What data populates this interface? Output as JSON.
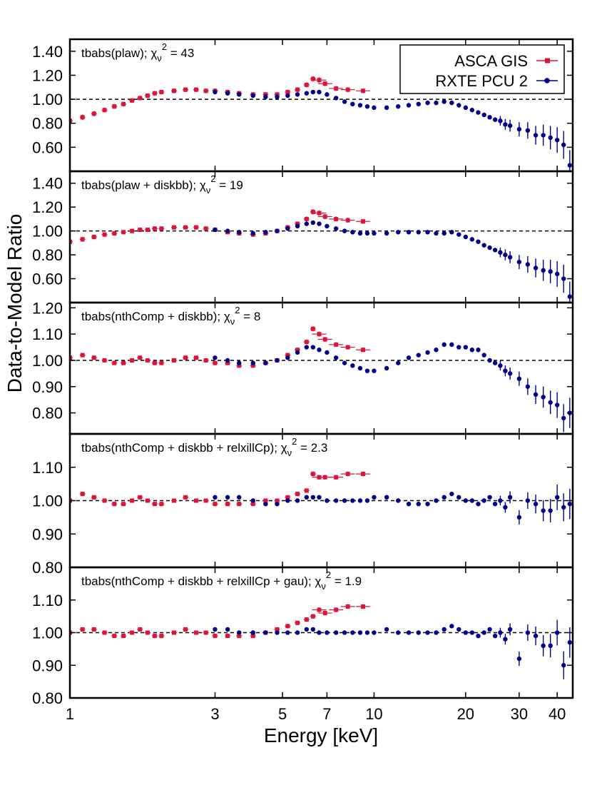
{
  "figure": {
    "xlabel": "Energy [keV]",
    "ylabel": "Data-to-Model Ratio",
    "x_ticks": [
      1,
      3,
      5,
      7,
      10,
      20,
      30,
      40
    ],
    "x_tick_labels": [
      "1",
      "3",
      "5",
      "7",
      "10",
      "20",
      "30",
      "40"
    ],
    "xlim": [
      1,
      45
    ],
    "x_scale": "log",
    "legend": {
      "placement": "top-right of top panel",
      "entries": [
        {
          "label": "ASCA GIS",
          "color": "#dc143c",
          "marker": "square"
        },
        {
          "label": "RXTE PCU 2",
          "color": "#00008b",
          "marker": "circle"
        }
      ]
    },
    "reference_line": 1.0
  },
  "chart_data": [
    {
      "type": "scatter",
      "model_prefix": "tbabs(plaw);",
      "chi_symbol": "χ",
      "chi_sub": "ν",
      "chi_sup": "2",
      "chi_value": "= 43",
      "ylim": [
        0.4,
        1.5
      ],
      "y_ticks": [
        0.6,
        0.8,
        1.0,
        1.2,
        1.4
      ],
      "y_tick_labels": [
        "0.60",
        "0.80",
        "1.00",
        "1.20",
        "1.40"
      ],
      "series": [
        {
          "name": "ASCA GIS",
          "x": [
            1.0,
            1.1,
            1.2,
            1.3,
            1.4,
            1.5,
            1.6,
            1.7,
            1.8,
            1.9,
            2.0,
            2.2,
            2.4,
            2.6,
            2.8,
            3.0,
            3.3,
            3.6,
            4.0,
            4.4,
            4.8,
            5.2,
            5.6,
            6.0,
            6.3,
            6.6,
            6.9,
            7.5,
            8.2,
            9.2
          ],
          "y": [
            0.82,
            0.85,
            0.88,
            0.91,
            0.94,
            0.96,
            0.99,
            1.01,
            1.03,
            1.05,
            1.06,
            1.07,
            1.08,
            1.08,
            1.07,
            1.07,
            1.06,
            1.05,
            1.04,
            1.04,
            1.04,
            1.06,
            1.08,
            1.12,
            1.17,
            1.16,
            1.13,
            1.09,
            1.08,
            1.07
          ]
        },
        {
          "name": "RXTE PCU 2",
          "x": [
            3.0,
            3.3,
            3.6,
            4.0,
            4.4,
            4.8,
            5.2,
            5.6,
            6.0,
            6.3,
            6.6,
            7.0,
            7.5,
            8.0,
            8.5,
            9.0,
            9.5,
            10.0,
            11.0,
            12.0,
            13.0,
            14.0,
            15.0,
            16.0,
            17.0,
            18.0,
            19.0,
            20.0,
            21.0,
            22.0,
            23.0,
            24.0,
            25.0,
            26.0,
            27.0,
            28.0,
            30.0,
            32.0,
            34.0,
            36.0,
            38.0,
            40.0,
            42.0,
            44.0
          ],
          "y": [
            1.06,
            1.05,
            1.04,
            1.03,
            1.02,
            1.02,
            1.03,
            1.04,
            1.05,
            1.06,
            1.06,
            1.04,
            1.01,
            0.98,
            0.96,
            0.95,
            0.94,
            0.93,
            0.93,
            0.94,
            0.95,
            0.96,
            0.97,
            0.97,
            0.98,
            0.97,
            0.95,
            0.93,
            0.91,
            0.89,
            0.87,
            0.85,
            0.83,
            0.82,
            0.79,
            0.78,
            0.75,
            0.74,
            0.7,
            0.7,
            0.68,
            0.66,
            0.62,
            0.45
          ]
        }
      ]
    },
    {
      "type": "scatter",
      "model_prefix": "tbabs(plaw + diskbb);",
      "chi_symbol": "χ",
      "chi_sub": "ν",
      "chi_sup": "2",
      "chi_value": "= 19",
      "ylim": [
        0.4,
        1.5
      ],
      "y_ticks": [
        0.6,
        0.8,
        1.0,
        1.2,
        1.4
      ],
      "y_tick_labels": [
        "0.60",
        "0.80",
        "1.00",
        "1.20",
        "1.40"
      ],
      "series": [
        {
          "name": "ASCA GIS",
          "x": [
            1.0,
            1.1,
            1.2,
            1.3,
            1.4,
            1.5,
            1.6,
            1.7,
            1.8,
            1.9,
            2.0,
            2.2,
            2.4,
            2.6,
            2.8,
            3.0,
            3.3,
            3.6,
            4.0,
            4.4,
            4.8,
            5.2,
            5.6,
            6.0,
            6.3,
            6.6,
            6.9,
            7.5,
            8.2,
            9.2
          ],
          "y": [
            0.91,
            0.93,
            0.95,
            0.97,
            0.98,
            0.99,
            1.0,
            1.01,
            1.01,
            1.02,
            1.02,
            1.03,
            1.03,
            1.03,
            1.02,
            1.01,
            0.99,
            0.98,
            0.97,
            0.98,
            1.0,
            1.03,
            1.06,
            1.1,
            1.16,
            1.15,
            1.12,
            1.1,
            1.09,
            1.08
          ]
        },
        {
          "name": "RXTE PCU 2",
          "x": [
            3.0,
            3.3,
            3.6,
            4.0,
            4.4,
            4.8,
            5.2,
            5.6,
            6.0,
            6.3,
            6.6,
            7.0,
            7.5,
            8.0,
            8.5,
            9.0,
            9.5,
            10.0,
            11.0,
            12.0,
            13.0,
            14.0,
            15.0,
            16.0,
            17.0,
            18.0,
            19.0,
            20.0,
            21.0,
            22.0,
            23.0,
            24.0,
            25.0,
            26.0,
            27.0,
            28.0,
            30.0,
            32.0,
            34.0,
            36.0,
            38.0,
            40.0,
            42.0,
            44.0
          ],
          "y": [
            1.01,
            1.0,
            0.99,
            0.98,
            0.99,
            1.0,
            1.02,
            1.04,
            1.06,
            1.07,
            1.06,
            1.04,
            1.02,
            1.0,
            0.99,
            0.98,
            0.98,
            0.98,
            0.98,
            0.99,
            0.99,
            0.99,
            0.99,
            0.98,
            0.98,
            0.99,
            0.97,
            0.95,
            0.93,
            0.91,
            0.88,
            0.86,
            0.84,
            0.82,
            0.8,
            0.78,
            0.74,
            0.72,
            0.69,
            0.67,
            0.66,
            0.64,
            0.6,
            0.45
          ]
        }
      ]
    },
    {
      "type": "scatter",
      "model_prefix": "tbabs(nthComp + diskbb);",
      "chi_symbol": "χ",
      "chi_sub": "ν",
      "chi_sup": "2",
      "chi_value": "= 8",
      "ylim": [
        0.72,
        1.22
      ],
      "y_ticks": [
        0.8,
        0.9,
        1.0,
        1.1,
        1.2
      ],
      "y_tick_labels": [
        "0.80",
        "0.90",
        "1.00",
        "1.10",
        "1.20"
      ],
      "series": [
        {
          "name": "ASCA GIS",
          "x": [
            1.0,
            1.1,
            1.2,
            1.3,
            1.4,
            1.5,
            1.6,
            1.7,
            1.8,
            1.9,
            2.0,
            2.2,
            2.4,
            2.6,
            2.8,
            3.0,
            3.3,
            3.6,
            4.0,
            4.4,
            4.8,
            5.2,
            5.6,
            6.0,
            6.3,
            6.6,
            6.9,
            7.5,
            8.2,
            9.2
          ],
          "y": [
            1.01,
            1.02,
            1.01,
            1.0,
            0.99,
            0.99,
            1.0,
            1.01,
            1.0,
            0.99,
            0.99,
            1.0,
            1.01,
            1.01,
            1.0,
            0.99,
            0.99,
            0.98,
            0.98,
            0.99,
            1.0,
            1.02,
            1.04,
            1.07,
            1.12,
            1.1,
            1.08,
            1.06,
            1.05,
            1.04
          ]
        },
        {
          "name": "RXTE PCU 2",
          "x": [
            3.0,
            3.3,
            3.6,
            4.0,
            4.4,
            4.8,
            5.2,
            5.6,
            6.0,
            6.3,
            6.6,
            7.0,
            7.5,
            8.0,
            8.5,
            9.0,
            9.5,
            10.0,
            11.0,
            12.0,
            13.0,
            14.0,
            15.0,
            16.0,
            17.0,
            18.0,
            19.0,
            20.0,
            21.0,
            22.0,
            23.0,
            24.0,
            25.0,
            26.0,
            27.0,
            28.0,
            30.0,
            32.0,
            34.0,
            36.0,
            38.0,
            40.0,
            42.0,
            44.0
          ],
          "y": [
            1.01,
            1.0,
            0.99,
            0.99,
            0.99,
            1.0,
            1.01,
            1.03,
            1.05,
            1.05,
            1.04,
            1.03,
            1.01,
            0.99,
            0.98,
            0.97,
            0.96,
            0.96,
            0.97,
            0.99,
            1.01,
            1.02,
            1.03,
            1.04,
            1.06,
            1.06,
            1.05,
            1.05,
            1.04,
            1.04,
            1.02,
            1.0,
            0.99,
            0.98,
            0.96,
            0.95,
            0.93,
            0.9,
            0.87,
            0.86,
            0.84,
            0.83,
            0.78,
            0.8
          ]
        }
      ]
    },
    {
      "type": "scatter",
      "model_prefix": "tbabs(nthComp + diskbb + relxillCp);",
      "chi_symbol": "χ",
      "chi_sub": "ν",
      "chi_sup": "2",
      "chi_value": "= 2.3",
      "ylim": [
        0.8,
        1.2
      ],
      "y_ticks": [
        0.8,
        0.9,
        1.0,
        1.1
      ],
      "y_tick_labels": [
        "0.80",
        "0.90",
        "1.00",
        "1.10"
      ],
      "series": [
        {
          "name": "ASCA GIS",
          "x": [
            1.0,
            1.1,
            1.2,
            1.3,
            1.4,
            1.5,
            1.6,
            1.7,
            1.8,
            1.9,
            2.0,
            2.2,
            2.4,
            2.6,
            2.8,
            3.0,
            3.3,
            3.6,
            4.0,
            4.4,
            4.8,
            5.2,
            5.6,
            6.0,
            6.3,
            6.6,
            6.9,
            7.5,
            8.2,
            9.2
          ],
          "y": [
            1.0,
            1.02,
            1.01,
            1.0,
            0.99,
            0.99,
            1.0,
            1.01,
            1.0,
            0.99,
            0.99,
            1.0,
            1.01,
            1.0,
            1.0,
            0.99,
            0.99,
            0.99,
            0.99,
            1.0,
            1.0,
            1.01,
            1.02,
            1.03,
            1.08,
            1.07,
            1.07,
            1.07,
            1.08,
            1.08
          ]
        },
        {
          "name": "RXTE PCU 2",
          "x": [
            3.0,
            3.3,
            3.6,
            4.0,
            4.4,
            4.8,
            5.2,
            5.6,
            6.0,
            6.3,
            6.6,
            7.0,
            7.5,
            8.0,
            8.5,
            9.0,
            9.5,
            10.0,
            11.0,
            12.0,
            13.0,
            14.0,
            15.0,
            16.0,
            17.0,
            18.0,
            19.0,
            20.0,
            21.0,
            22.0,
            23.0,
            24.0,
            25.0,
            26.0,
            27.0,
            28.0,
            30.0,
            32.0,
            34.0,
            36.0,
            38.0,
            40.0,
            42.0,
            44.0
          ],
          "y": [
            1.01,
            1.01,
            1.01,
            1.0,
            0.99,
            0.99,
            1.0,
            1.0,
            1.01,
            1.01,
            1.01,
            1.0,
            1.0,
            1.0,
            1.0,
            1.0,
            1.0,
            1.01,
            1.01,
            1.0,
            0.99,
            0.99,
            0.99,
            1.0,
            1.01,
            1.02,
            1.01,
            1.0,
            1.0,
            0.99,
            1.0,
            1.01,
            0.99,
            1.0,
            0.98,
            1.01,
            0.95,
            1.0,
            0.99,
            0.97,
            0.97,
            1.01,
            0.98,
            0.99
          ]
        }
      ]
    },
    {
      "type": "scatter",
      "model_prefix": "tbabs(nthComp + diskbb + relxillCp + gau);",
      "chi_symbol": "χ",
      "chi_sub": "ν",
      "chi_sup": "2",
      "chi_value": "= 1.9",
      "ylim": [
        0.8,
        1.2
      ],
      "y_ticks": [
        0.8,
        0.9,
        1.0,
        1.1
      ],
      "y_tick_labels": [
        "0.80",
        "0.90",
        "1.00",
        "1.10"
      ],
      "series": [
        {
          "name": "ASCA GIS",
          "x": [
            1.0,
            1.1,
            1.2,
            1.3,
            1.4,
            1.5,
            1.6,
            1.7,
            1.8,
            1.9,
            2.0,
            2.2,
            2.4,
            2.6,
            2.8,
            3.0,
            3.3,
            3.6,
            4.0,
            4.4,
            4.8,
            5.2,
            5.6,
            6.0,
            6.3,
            6.6,
            6.9,
            7.5,
            8.2,
            9.2
          ],
          "y": [
            1.0,
            1.01,
            1.01,
            1.0,
            0.99,
            0.99,
            1.0,
            1.01,
            1.0,
            0.99,
            0.99,
            1.0,
            1.01,
            1.0,
            1.0,
            0.99,
            0.99,
            0.99,
            0.99,
            1.0,
            1.01,
            1.02,
            1.03,
            1.04,
            1.05,
            1.07,
            1.06,
            1.07,
            1.08,
            1.08
          ]
        },
        {
          "name": "RXTE PCU 2",
          "x": [
            3.0,
            3.3,
            3.6,
            4.0,
            4.4,
            4.8,
            5.2,
            5.6,
            6.0,
            6.3,
            6.6,
            7.0,
            7.5,
            8.0,
            8.5,
            9.0,
            9.5,
            10.0,
            11.0,
            12.0,
            13.0,
            14.0,
            15.0,
            16.0,
            17.0,
            18.0,
            19.0,
            20.0,
            21.0,
            22.0,
            23.0,
            24.0,
            25.0,
            26.0,
            27.0,
            28.0,
            30.0,
            32.0,
            34.0,
            36.0,
            38.0,
            40.0,
            42.0,
            44.0
          ],
          "y": [
            1.01,
            1.01,
            1.0,
            1.0,
            1.0,
            1.0,
            1.0,
            1.0,
            1.01,
            1.01,
            1.0,
            1.0,
            1.0,
            1.0,
            1.0,
            1.0,
            1.0,
            1.0,
            1.01,
            1.0,
            1.0,
            1.0,
            1.0,
            1.0,
            1.01,
            1.02,
            1.01,
            1.0,
            1.0,
            0.99,
            1.0,
            1.01,
            0.99,
            1.0,
            0.98,
            1.01,
            0.92,
            1.0,
            0.99,
            0.96,
            0.96,
            1.0,
            0.9,
            0.97
          ]
        }
      ]
    }
  ]
}
